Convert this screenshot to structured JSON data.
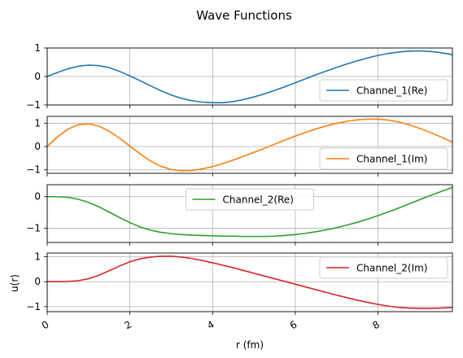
{
  "title": "Wave Functions",
  "chart_data": {
    "type": "line",
    "title": "Wave Functions",
    "xlabel": "r (fm)",
    "ylabel": "u(r)",
    "xlim": [
      0,
      9.8
    ],
    "x_ticks": [
      0,
      2,
      4,
      6,
      8
    ],
    "x_tick_labels": [
      "0",
      "2",
      "4",
      "6",
      "8"
    ],
    "grid": true,
    "shared_x": true,
    "panels": [
      {
        "name": "Channel_1(Re)",
        "color": "#1f77b4",
        "legend": "lower-right",
        "ylim": [
          -1.0,
          1.0
        ],
        "y_ticks": [
          -1,
          0,
          1
        ],
        "y_tick_labels": [
          "−1",
          "0",
          "1"
        ],
        "x": [
          0,
          0.25,
          0.5,
          0.75,
          1,
          1.25,
          1.5,
          1.75,
          2,
          2.25,
          2.5,
          2.75,
          3,
          3.25,
          3.5,
          3.75,
          4,
          4.25,
          4.5,
          4.75,
          5,
          5.25,
          5.5,
          5.75,
          6,
          6.25,
          6.5,
          6.75,
          7,
          7.25,
          7.5,
          7.75,
          8,
          8.25,
          8.5,
          8.75,
          9,
          9.25,
          9.5,
          9.75,
          9.8
        ],
        "y": [
          0,
          0.14,
          0.27,
          0.36,
          0.4,
          0.38,
          0.31,
          0.18,
          0.02,
          -0.15,
          -0.33,
          -0.5,
          -0.65,
          -0.77,
          -0.85,
          -0.9,
          -0.92,
          -0.92,
          -0.88,
          -0.81,
          -0.72,
          -0.61,
          -0.49,
          -0.36,
          -0.22,
          -0.08,
          0.06,
          0.19,
          0.32,
          0.44,
          0.55,
          0.65,
          0.74,
          0.81,
          0.86,
          0.89,
          0.9,
          0.88,
          0.84,
          0.78,
          0.75
        ]
      },
      {
        "name": "Channel_1(Im)",
        "color": "#ff7f0e",
        "legend": "lower-right",
        "ylim": [
          -1.15,
          1.3
        ],
        "y_ticks": [
          -1,
          0,
          1
        ],
        "y_tick_labels": [
          "−1",
          "0",
          "1"
        ],
        "x": [
          0,
          0.25,
          0.5,
          0.75,
          1,
          1.25,
          1.5,
          1.75,
          2,
          2.25,
          2.5,
          2.75,
          3,
          3.25,
          3.5,
          3.75,
          4,
          4.25,
          4.5,
          4.75,
          5,
          5.25,
          5.5,
          5.75,
          6,
          6.25,
          6.5,
          6.75,
          7,
          7.25,
          7.5,
          7.75,
          8,
          8.25,
          8.5,
          8.75,
          9,
          9.25,
          9.5,
          9.75,
          9.8
        ],
        "y": [
          0,
          0.42,
          0.75,
          0.94,
          0.98,
          0.88,
          0.66,
          0.36,
          0.02,
          -0.32,
          -0.62,
          -0.85,
          -0.99,
          -1.04,
          -1.03,
          -0.96,
          -0.86,
          -0.73,
          -0.58,
          -0.42,
          -0.25,
          -0.08,
          0.1,
          0.28,
          0.45,
          0.61,
          0.76,
          0.89,
          1.0,
          1.09,
          1.15,
          1.18,
          1.18,
          1.14,
          1.06,
          0.94,
          0.79,
          0.62,
          0.43,
          0.23,
          0.18
        ]
      },
      {
        "name": "Channel_2(Re)",
        "color": "#2ca02c",
        "legend": "upper-center",
        "ylim": [
          -1.45,
          0.38
        ],
        "y_ticks": [
          -1,
          0
        ],
        "y_tick_labels": [
          "−1",
          "0"
        ],
        "x": [
          0,
          0.25,
          0.5,
          0.75,
          1,
          1.25,
          1.5,
          1.75,
          2,
          2.25,
          2.5,
          2.75,
          3,
          3.25,
          3.5,
          3.75,
          4,
          4.25,
          4.5,
          4.75,
          5,
          5.25,
          5.5,
          5.75,
          6,
          6.25,
          6.5,
          6.75,
          7,
          7.25,
          7.5,
          7.75,
          8,
          8.25,
          8.5,
          8.75,
          9,
          9.25,
          9.5,
          9.75,
          9.8
        ],
        "y": [
          0,
          0,
          -0.02,
          -0.08,
          -0.18,
          -0.32,
          -0.49,
          -0.66,
          -0.82,
          -0.96,
          -1.06,
          -1.13,
          -1.17,
          -1.2,
          -1.22,
          -1.23,
          -1.24,
          -1.25,
          -1.25,
          -1.26,
          -1.26,
          -1.26,
          -1.25,
          -1.23,
          -1.2,
          -1.16,
          -1.11,
          -1.05,
          -0.98,
          -0.9,
          -0.81,
          -0.71,
          -0.6,
          -0.48,
          -0.36,
          -0.23,
          -0.1,
          0.03,
          0.15,
          0.27,
          0.3
        ]
      },
      {
        "name": "Channel_2(Im)",
        "color": "#d62728",
        "legend": "upper-right",
        "ylim": [
          -1.2,
          1.15
        ],
        "y_ticks": [
          -1,
          0,
          1
        ],
        "y_tick_labels": [
          "−1",
          "0",
          "1"
        ],
        "x": [
          0,
          0.25,
          0.5,
          0.75,
          1,
          1.25,
          1.5,
          1.75,
          2,
          2.25,
          2.5,
          2.75,
          3,
          3.25,
          3.5,
          3.75,
          4,
          4.25,
          4.5,
          4.75,
          5,
          5.25,
          5.5,
          5.75,
          6,
          6.25,
          6.5,
          6.75,
          7,
          7.25,
          7.5,
          7.75,
          8,
          8.25,
          8.5,
          8.75,
          9,
          9.25,
          9.5,
          9.75,
          9.8
        ],
        "y": [
          0,
          0,
          0.01,
          0.04,
          0.12,
          0.26,
          0.44,
          0.63,
          0.8,
          0.92,
          0.99,
          1.02,
          1.02,
          0.99,
          0.93,
          0.85,
          0.76,
          0.66,
          0.56,
          0.45,
          0.34,
          0.23,
          0.12,
          0.01,
          -0.1,
          -0.21,
          -0.32,
          -0.43,
          -0.54,
          -0.64,
          -0.74,
          -0.83,
          -0.91,
          -0.98,
          -1.03,
          -1.06,
          -1.07,
          -1.07,
          -1.06,
          -1.04,
          -1.03
        ]
      }
    ]
  }
}
